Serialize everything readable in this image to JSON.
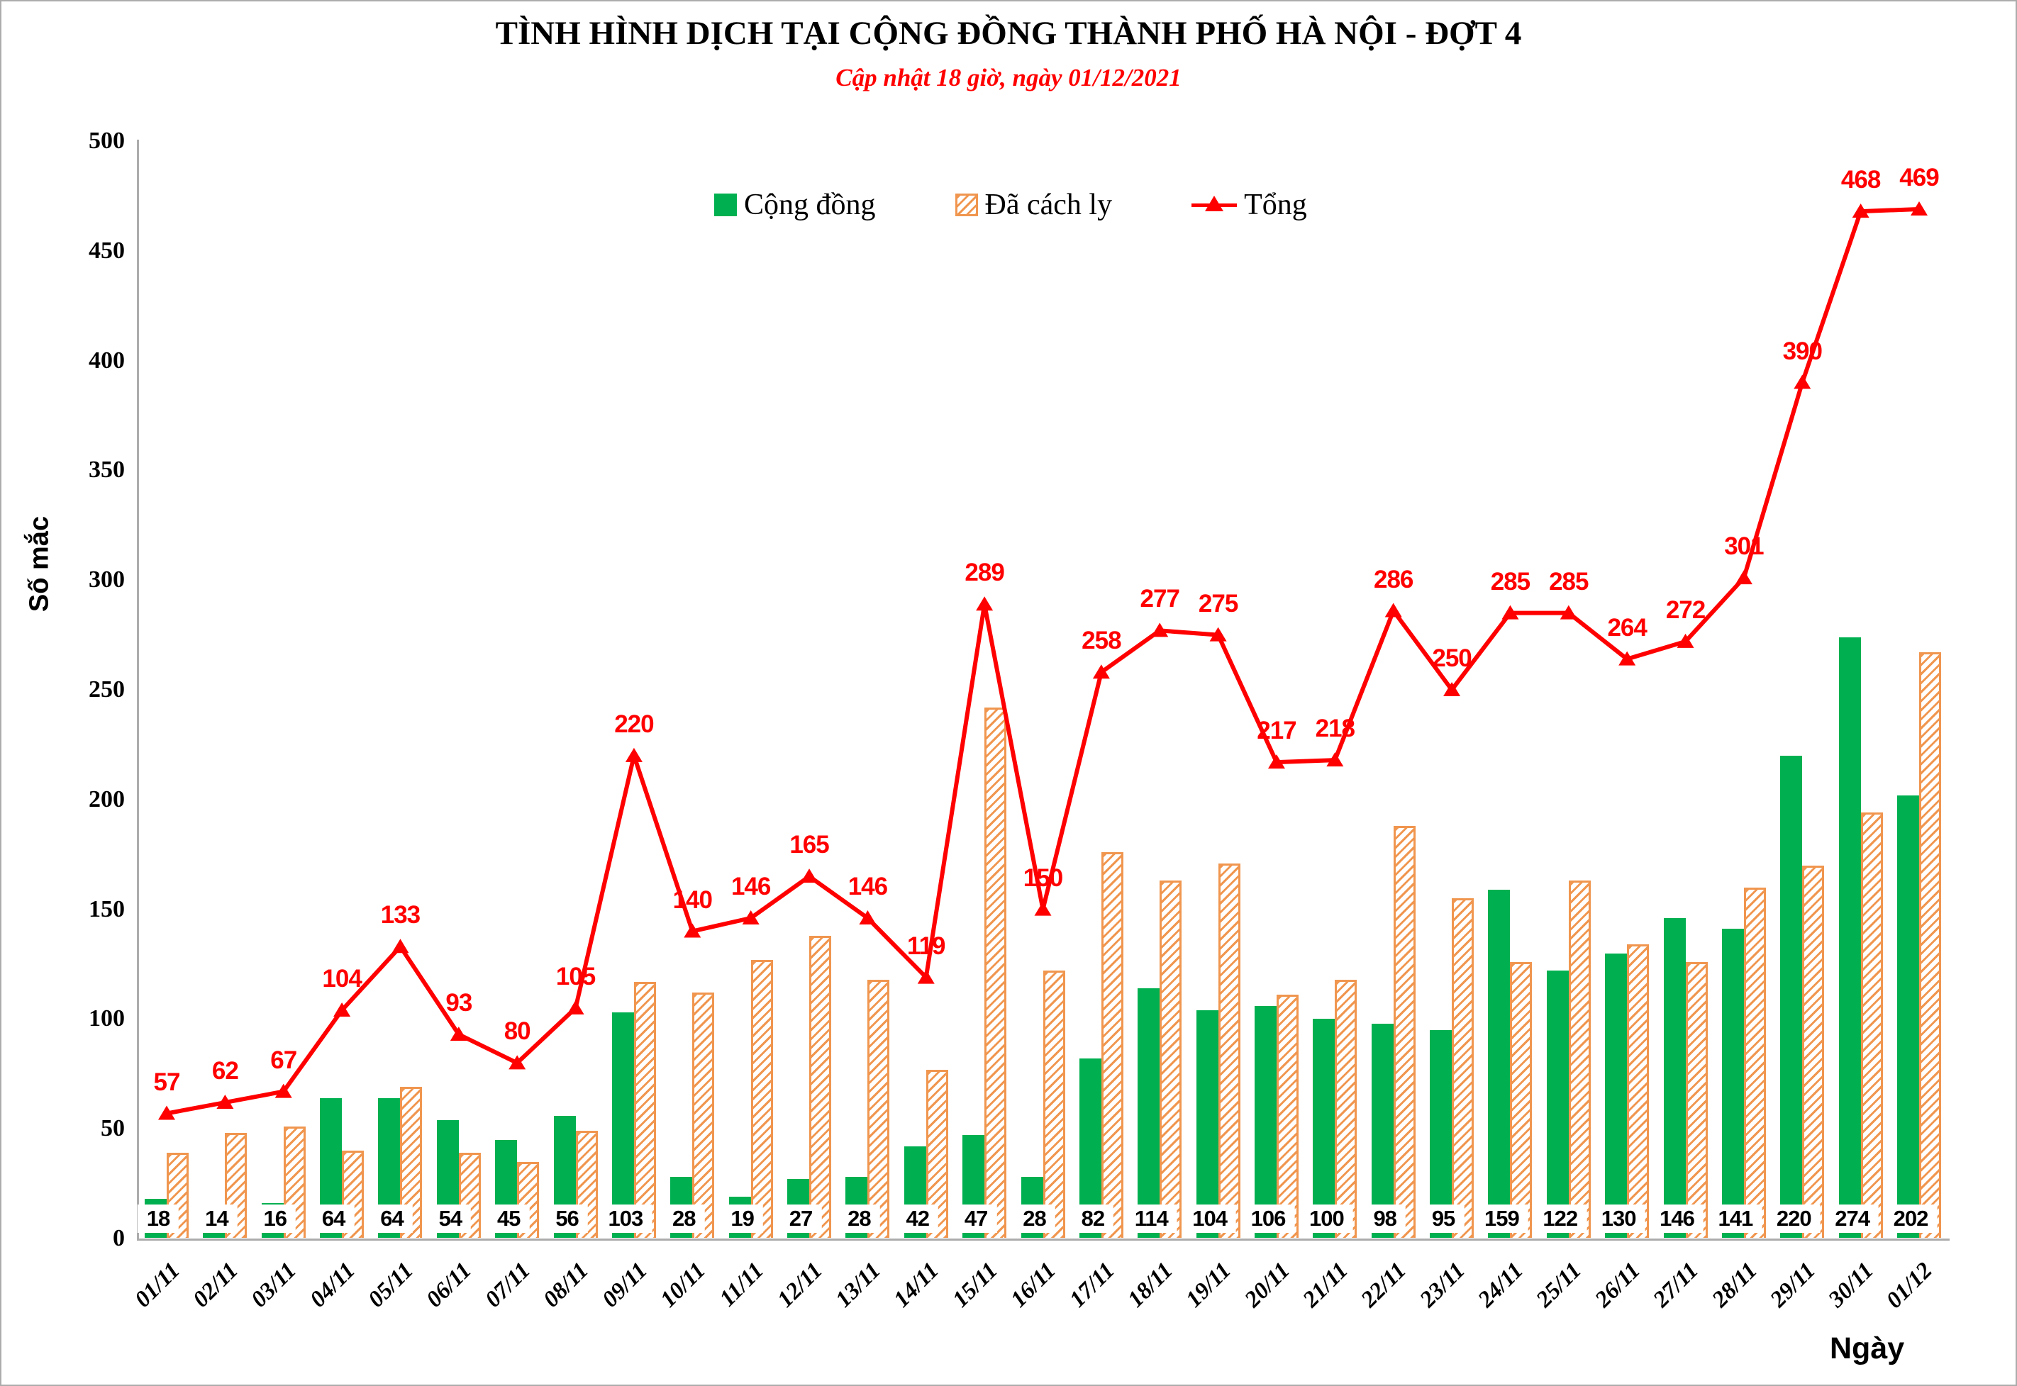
{
  "header": {
    "title": "TÌNH HÌNH DỊCH TẠI CỘNG ĐỒNG THÀNH PHỐ HÀ NỘI - ĐỢT 4",
    "subtitle": "Cập nhật 18 giờ, ngày 01/12/2021"
  },
  "legend": {
    "community_label": "Cộng đồng",
    "quarantined_label": "Đã cách ly",
    "total_label": "Tổng"
  },
  "axes": {
    "y_label": "Số mắc",
    "x_label": "Ngày",
    "y_ticks": [
      0,
      50,
      100,
      150,
      200,
      250,
      300,
      350,
      400,
      450,
      500
    ]
  },
  "colors": {
    "community_green": "#00B050",
    "quarantined_orange": "#F0964F",
    "total_red": "#FF0000",
    "axis_gray": "#ACACAC"
  },
  "chart_data": {
    "type": "bar",
    "title": "TÌNH HÌNH DỊCH TẠI CỘNG ĐỒNG THÀNH PHỐ HÀ NỘI - ĐỢT 4",
    "subtitle": "Cập nhật 18 giờ, ngày 01/12/2021",
    "xlabel": "Ngày",
    "ylabel": "Số mắc",
    "ylim": [
      0,
      500
    ],
    "grid": false,
    "legend_position": "top",
    "categories": [
      "01/11",
      "02/11",
      "03/11",
      "04/11",
      "05/11",
      "06/11",
      "07/11",
      "08/11",
      "09/11",
      "10/11",
      "11/11",
      "12/11",
      "13/11",
      "14/11",
      "15/11",
      "16/11",
      "17/11",
      "18/11",
      "19/11",
      "20/11",
      "21/11",
      "22/11",
      "23/11",
      "24/11",
      "25/11",
      "26/11",
      "27/11",
      "28/11",
      "29/11",
      "30/11",
      "01/12"
    ],
    "series": [
      {
        "name": "Cộng đồng",
        "type": "bar",
        "style": "solid",
        "color": "#00B050",
        "values": [
          18,
          14,
          16,
          64,
          64,
          54,
          45,
          56,
          103,
          28,
          19,
          27,
          28,
          42,
          47,
          28,
          82,
          114,
          104,
          106,
          100,
          98,
          95,
          159,
          122,
          130,
          146,
          141,
          220,
          274,
          202
        ]
      },
      {
        "name": "Đã cách ly",
        "type": "bar",
        "style": "hatched",
        "color": "#F0964F",
        "values": [
          39,
          48,
          51,
          40,
          69,
          39,
          35,
          49,
          117,
          112,
          127,
          138,
          118,
          77,
          242,
          122,
          176,
          163,
          171,
          111,
          118,
          188,
          155,
          126,
          163,
          134,
          126,
          160,
          170,
          194,
          267
        ]
      },
      {
        "name": "Tổng",
        "type": "line",
        "marker": "triangle-up",
        "color": "#FF0000",
        "values": [
          57,
          62,
          67,
          104,
          133,
          93,
          80,
          105,
          220,
          140,
          146,
          165,
          146,
          119,
          289,
          150,
          258,
          277,
          275,
          217,
          218,
          286,
          250,
          285,
          285,
          264,
          272,
          301,
          390,
          468,
          469
        ]
      }
    ],
    "bar_value_labels_series": "Cộng đồng",
    "line_value_labels_series": "Tổng"
  }
}
